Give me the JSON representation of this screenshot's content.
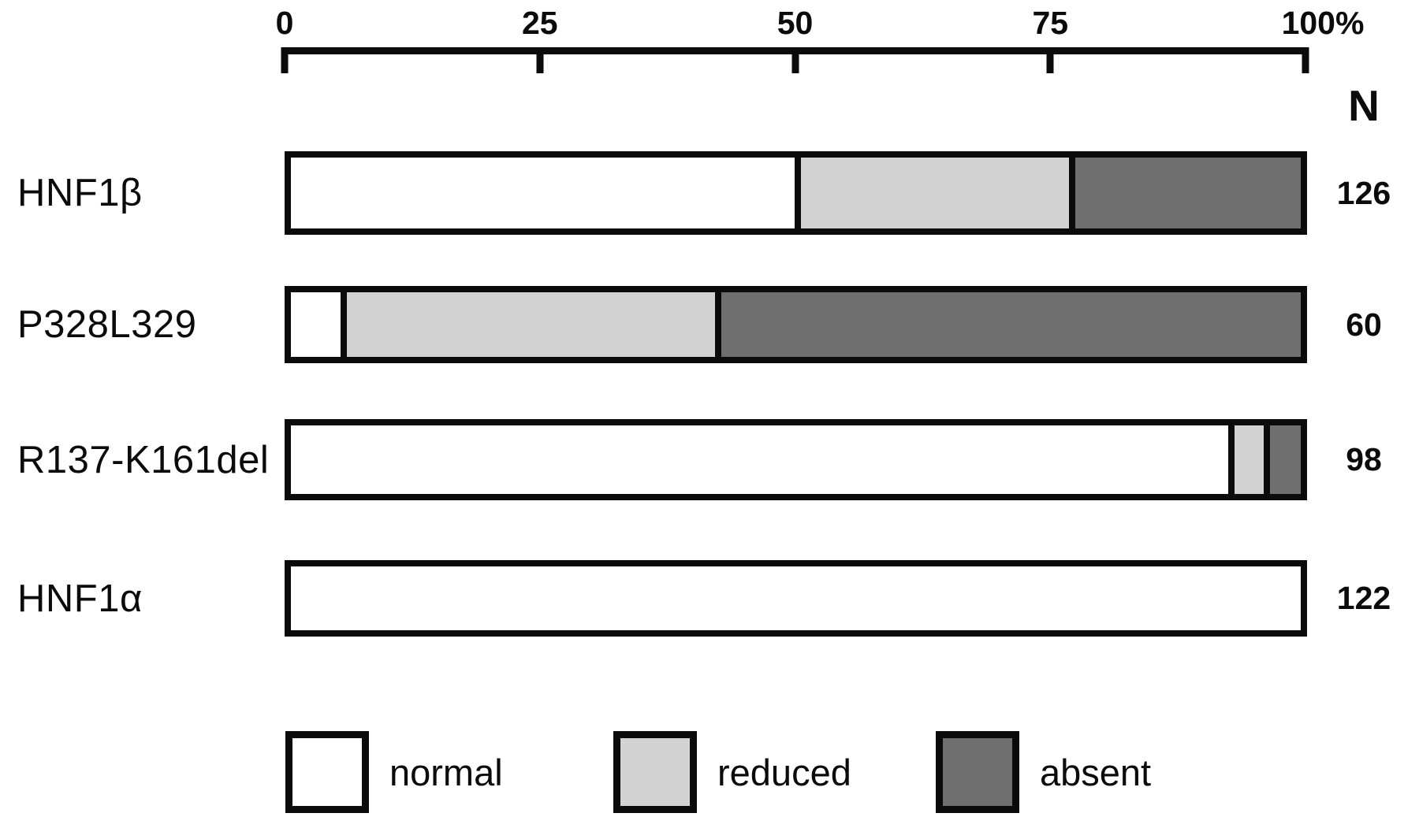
{
  "chart_data": {
    "type": "bar",
    "orientation": "horizontal",
    "stacked": true,
    "axis": {
      "position": "top",
      "tick_labels": [
        "0",
        "25",
        "50",
        "75",
        "100%"
      ],
      "tick_values": [
        0,
        25,
        50,
        75,
        100
      ],
      "range": [
        0,
        100
      ]
    },
    "n_header": "N",
    "categories": [
      "HNF1β",
      "P328L329",
      "R137-K161del",
      "HNF1α"
    ],
    "series": [
      {
        "name": "normal",
        "values": [
          50.5,
          5.0,
          94.0,
          100.0
        ]
      },
      {
        "name": "reduced",
        "values": [
          26.9,
          36.9,
          2.9,
          0.0
        ]
      },
      {
        "name": "absent",
        "values": [
          22.6,
          58.1,
          3.1,
          0.0
        ]
      }
    ],
    "n_values": [
      126,
      60,
      98,
      122
    ],
    "legend": [
      {
        "label": "normal",
        "color": "#ffffff"
      },
      {
        "label": "reduced",
        "color": "#d3d3d3"
      },
      {
        "label": "absent",
        "color": "#6f6f6f"
      }
    ],
    "colors": {
      "normal": "#ffffff",
      "reduced": "#d3d3d3",
      "absent": "#6f6f6f",
      "ink": "#0b0b0b"
    }
  }
}
